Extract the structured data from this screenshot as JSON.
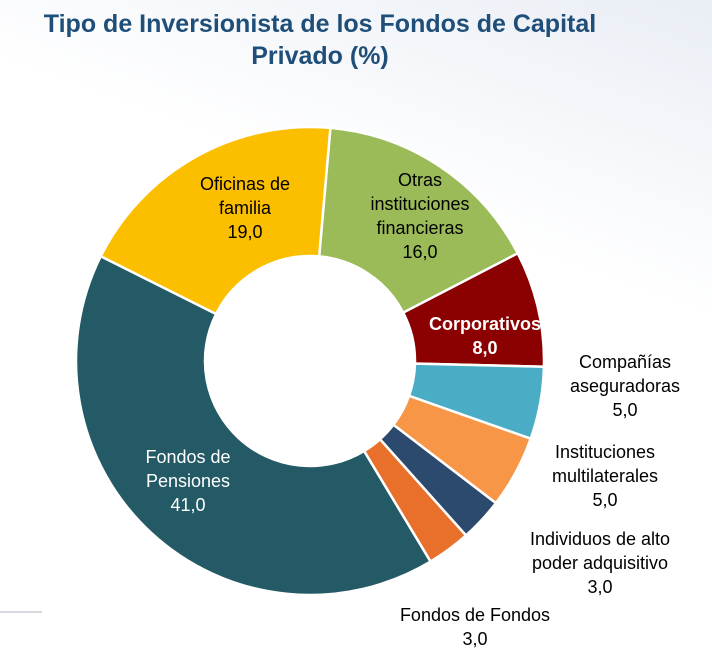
{
  "chart_data": {
    "type": "donut",
    "title": "Tipo de Inversionista de los Fondos de Capital Privado (%)",
    "categories": [
      "Otras instituciones financieras",
      "Corporativos",
      "Compañías aseguradoras",
      "Instituciones multilaterales",
      "Individuos de alto poder adquisitivo",
      "Fondos de Fondos",
      "Fondos de Pensiones",
      "Oficinas de familia"
    ],
    "values": [
      16,
      8,
      5,
      5,
      3,
      3,
      41,
      19
    ],
    "value_labels": [
      "16,0",
      "8,0",
      "5,0",
      "5,0",
      "3,0",
      "3,0",
      "41,0",
      "19,0"
    ],
    "colors": [
      "#9bbb59",
      "#8b0000",
      "#4bacc6",
      "#f79646",
      "#2b4a6e",
      "#e8702a",
      "#245a66",
      "#fbbf00"
    ]
  }
}
